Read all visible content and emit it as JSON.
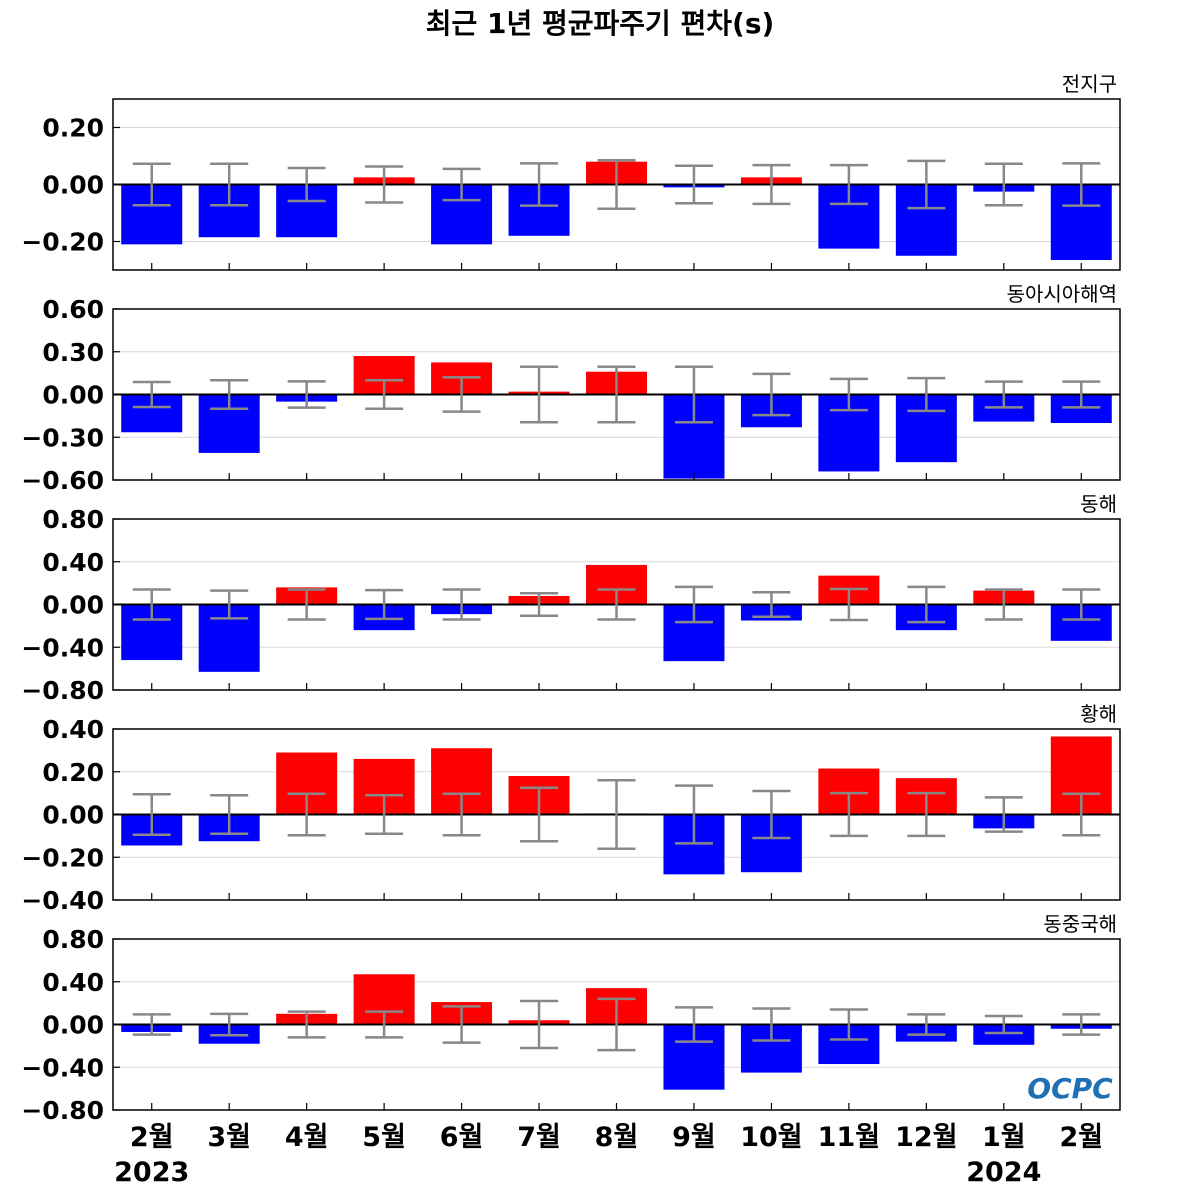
{
  "title": "최근 1년 평균파주기 편차(s)",
  "logo_text": "OCPC",
  "colors": {
    "positive": "#ff0000",
    "negative": "#0000ff",
    "error_bar": "#888888",
    "zero_line": "#000000",
    "grid": "#d9d9d9"
  },
  "chart_data": {
    "type": "bar",
    "categories": [
      "2월",
      "3월",
      "4월",
      "5월",
      "6월",
      "7월",
      "8월",
      "9월",
      "10월",
      "11월",
      "12월",
      "1월",
      "2월"
    ],
    "year_labels": [
      {
        "category_index": 0,
        "label": "2023"
      },
      {
        "category_index": 11,
        "label": "2024"
      }
    ],
    "grid": true,
    "panels": [
      {
        "region": "전지구",
        "ylim": [
          -0.3,
          0.3
        ],
        "yticks": [
          -0.2,
          0.0,
          0.2
        ],
        "ytick_labels": [
          "−0.20",
          "0.00",
          "0.20"
        ],
        "values": [
          -0.21,
          -0.185,
          -0.185,
          0.025,
          -0.21,
          -0.18,
          0.08,
          -0.01,
          0.025,
          -0.225,
          -0.25,
          -0.025,
          -0.265
        ],
        "error": [
          0.073,
          0.073,
          0.058,
          0.063,
          0.055,
          0.074,
          0.085,
          0.066,
          0.068,
          0.068,
          0.083,
          0.073,
          0.074
        ]
      },
      {
        "region": "동아시아해역",
        "ylim": [
          -0.6,
          0.6
        ],
        "yticks": [
          -0.6,
          -0.3,
          0.0,
          0.3,
          0.6
        ],
        "ytick_labels": [
          "−0.60",
          "−0.30",
          "0.00",
          "0.30",
          "0.60"
        ],
        "values": [
          -0.265,
          -0.41,
          -0.05,
          0.27,
          0.225,
          0.02,
          0.16,
          -0.59,
          -0.23,
          -0.54,
          -0.475,
          -0.19,
          -0.2
        ],
        "error": [
          0.088,
          0.1,
          0.092,
          0.1,
          0.12,
          0.195,
          0.195,
          0.195,
          0.145,
          0.11,
          0.115,
          0.09,
          0.09
        ]
      },
      {
        "region": "동해",
        "ylim": [
          -0.8,
          0.8
        ],
        "yticks": [
          -0.8,
          -0.4,
          0.0,
          0.4,
          0.8
        ],
        "ytick_labels": [
          "−0.80",
          "−0.40",
          "0.00",
          "0.40",
          "0.80"
        ],
        "values": [
          -0.52,
          -0.63,
          0.16,
          -0.24,
          -0.09,
          0.08,
          0.37,
          -0.53,
          -0.15,
          0.27,
          -0.24,
          0.13,
          -0.34
        ],
        "error": [
          0.14,
          0.13,
          0.14,
          0.135,
          0.14,
          0.105,
          0.14,
          0.165,
          0.115,
          0.145,
          0.165,
          0.14,
          0.14
        ]
      },
      {
        "region": "황해",
        "ylim": [
          -0.4,
          0.4
        ],
        "yticks": [
          -0.4,
          -0.2,
          0.0,
          0.2,
          0.4
        ],
        "ytick_labels": [
          "−0.40",
          "−0.20",
          "0.00",
          "0.20",
          "0.40"
        ],
        "values": [
          -0.145,
          -0.125,
          0.29,
          0.26,
          0.31,
          0.18,
          0.005,
          -0.28,
          -0.27,
          0.215,
          0.17,
          -0.065,
          0.365
        ],
        "error": [
          0.095,
          0.09,
          0.097,
          0.09,
          0.097,
          0.125,
          0.16,
          0.135,
          0.11,
          0.1,
          0.1,
          0.08,
          0.097
        ]
      },
      {
        "region": "동중국해",
        "ylim": [
          -0.8,
          0.8
        ],
        "yticks": [
          -0.8,
          -0.4,
          0.0,
          0.4,
          0.8
        ],
        "ytick_labels": [
          "−0.80",
          "−0.40",
          "0.00",
          "0.40",
          "0.80"
        ],
        "values": [
          -0.07,
          -0.18,
          0.1,
          0.47,
          0.21,
          0.04,
          0.34,
          -0.61,
          -0.45,
          -0.37,
          -0.16,
          -0.19,
          -0.04
        ],
        "error": [
          0.095,
          0.1,
          0.12,
          0.12,
          0.17,
          0.22,
          0.24,
          0.16,
          0.15,
          0.14,
          0.095,
          0.08,
          0.095
        ]
      }
    ]
  }
}
